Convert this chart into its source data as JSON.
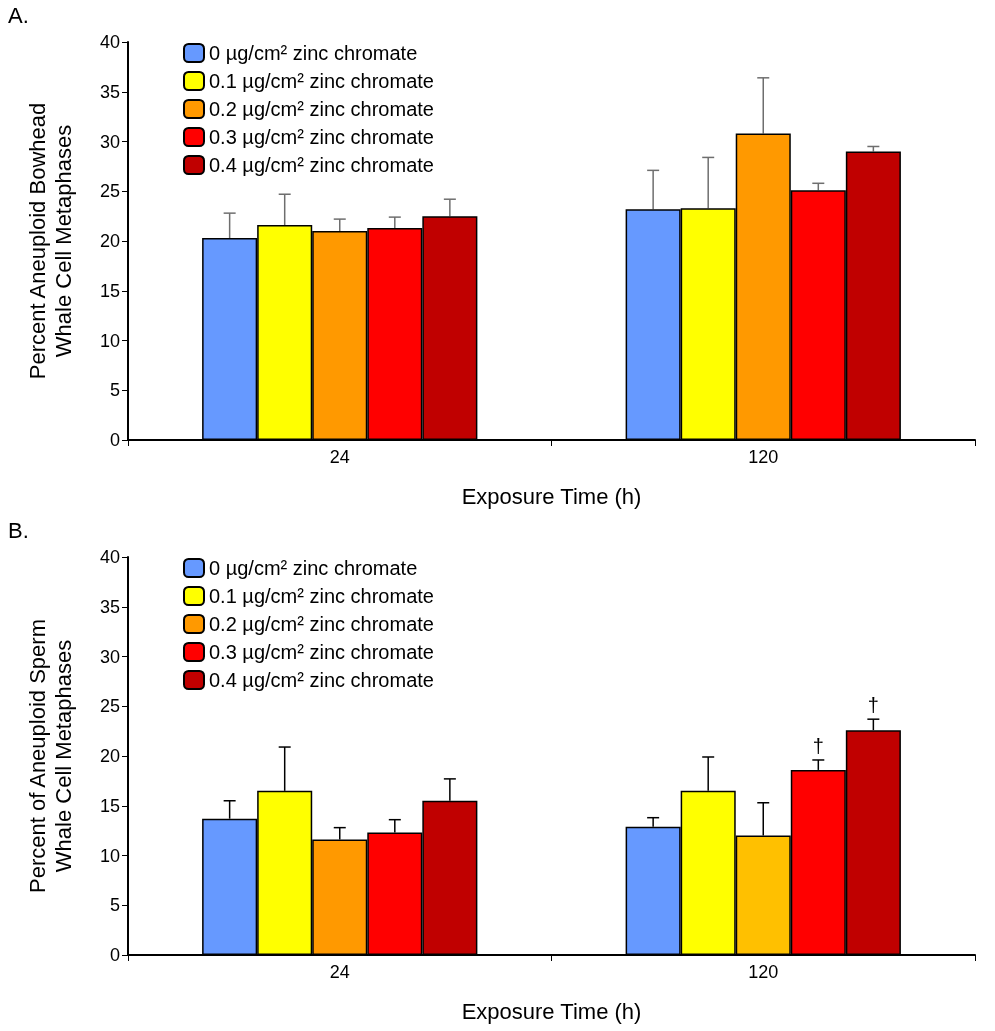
{
  "chart_data": [
    {
      "type": "bar",
      "title": "A.",
      "xlabel": "Exposure Time (h)",
      "ylabel": "Percent Aneuploid Bowhead\nWhale Cell Metaphases",
      "categories": [
        "24",
        "120"
      ],
      "series": [
        {
          "name": "0 µg/cm² zinc chromate",
          "color": "#6699ff",
          "values": [
            20.3,
            23.2
          ],
          "errors": [
            2.5,
            3.9
          ]
        },
        {
          "name": "0.1 µg/cm² zinc chromate",
          "color": "#ffff00",
          "values": [
            21.6,
            23.3
          ],
          "errors": [
            3.1,
            5.1
          ]
        },
        {
          "name": "0.2 µg/cm² zinc chromate",
          "color": "#ff9900",
          "values": [
            21.0,
            30.8
          ],
          "errors": [
            1.2,
            5.6
          ]
        },
        {
          "name": "0.3 µg/cm² zinc chromate",
          "color": "#ff0000",
          "values": [
            21.3,
            25.1
          ],
          "errors": [
            1.1,
            0.7
          ]
        },
        {
          "name": "0.4 µg/cm² zinc chromate",
          "color": "#c00000",
          "values": [
            22.5,
            29.0
          ],
          "errors": [
            1.7,
            0.5
          ]
        }
      ],
      "ylim": [
        0,
        40
      ],
      "yticks": [
        0,
        5,
        10,
        15,
        20,
        25,
        30,
        35,
        40
      ],
      "grid": false,
      "legend": "top left"
    },
    {
      "type": "bar",
      "title": "B.",
      "xlabel": "Exposure Time (h)",
      "ylabel": "Percent of Aneuploid Sperm\nWhale Cell Metaphases",
      "categories": [
        "24",
        "120"
      ],
      "series": [
        {
          "name": "0 µg/cm² zinc chromate",
          "color": "#6699ff",
          "values": [
            13.7,
            12.9
          ],
          "errors": [
            1.8,
            0.9
          ]
        },
        {
          "name": "0.1 µg/cm² zinc chromate",
          "color": "#ffff00",
          "values": [
            16.5,
            16.5
          ],
          "errors": [
            4.4,
            3.4
          ]
        },
        {
          "name": "0.2 µg/cm² zinc chromate",
          "color": "#ff9900",
          "colors": [
            "#ff9900",
            "#ffc000"
          ],
          "values": [
            11.6,
            12.0
          ],
          "errors": [
            1.2,
            3.3
          ]
        },
        {
          "name": "0.3 µg/cm² zinc chromate",
          "color": "#ff0000",
          "values": [
            12.3,
            18.6
          ],
          "errors": [
            1.3,
            1.0
          ],
          "value_labels": [
            null,
            "†"
          ]
        },
        {
          "name": "0.4 µg/cm² zinc chromate",
          "color": "#c00000",
          "values": [
            15.5,
            22.6
          ],
          "errors": [
            2.2,
            1.1
          ],
          "value_labels": [
            null,
            "†"
          ]
        }
      ],
      "ylim": [
        0,
        40
      ],
      "yticks": [
        0,
        5,
        10,
        15,
        20,
        25,
        30,
        35,
        40
      ],
      "grid": false,
      "legend": "top left"
    }
  ]
}
